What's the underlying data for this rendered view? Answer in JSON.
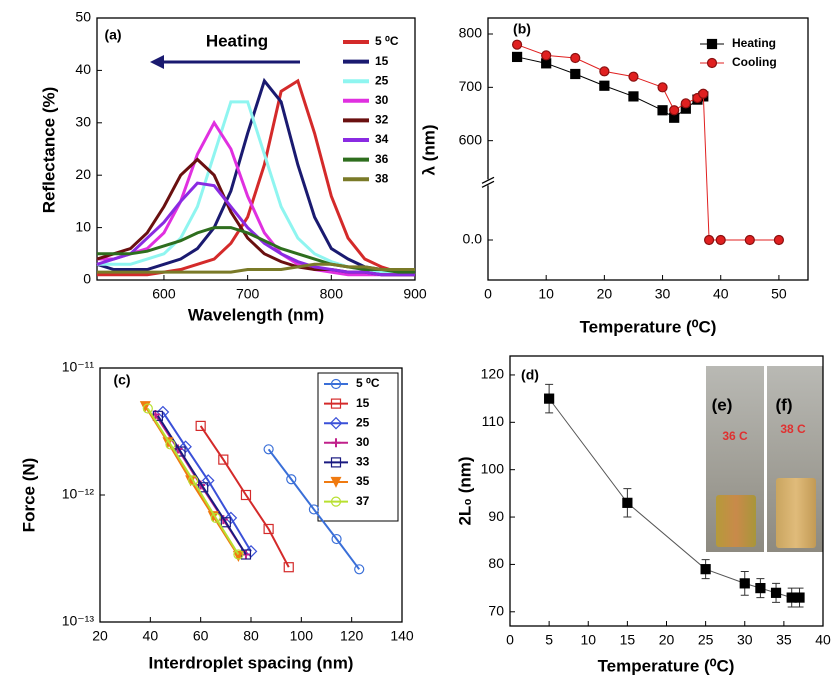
{
  "chart_data": [
    {
      "type": "line",
      "xlabel": "Wavelength (nm)",
      "ylabel": "Reflectance (%)",
      "annotations": [
        "(a)",
        "Heating"
      ],
      "x": [
        520,
        540,
        560,
        580,
        600,
        620,
        640,
        660,
        680,
        700,
        720,
        740,
        760,
        780,
        800,
        820,
        840,
        860,
        880,
        900
      ],
      "xlim": [
        520,
        900
      ],
      "xticks": [
        600,
        700,
        800,
        900
      ],
      "ylim": [
        0,
        50
      ],
      "yticks": [
        0,
        10,
        20,
        30,
        40,
        50
      ],
      "legend": "upper right",
      "series": [
        {
          "name": "5 ⁰C",
          "color": "#d42a2a",
          "values": [
            1,
            1,
            1,
            1,
            1.5,
            2,
            3,
            4,
            7,
            12,
            22,
            36,
            38,
            28,
            16,
            8,
            4,
            2.5,
            1.5,
            1
          ]
        },
        {
          "name": "15",
          "color": "#1a1a70",
          "values": [
            3,
            2,
            2,
            2,
            3,
            4,
            6,
            10,
            17,
            28,
            38,
            34,
            22,
            12,
            6,
            4,
            2.5,
            2,
            1.5,
            1
          ]
        },
        {
          "name": "25",
          "color": "#8ff5f0",
          "values": [
            3,
            3,
            3,
            4,
            5,
            8,
            14,
            24,
            34,
            34,
            24,
            14,
            8,
            5,
            3.5,
            2.5,
            2,
            1.5,
            1,
            1
          ]
        },
        {
          "name": "30",
          "color": "#e030e0",
          "values": [
            4,
            4,
            5,
            6,
            9,
            15,
            24,
            30,
            25,
            16,
            9,
            5,
            3,
            2,
            1.5,
            1,
            1,
            1,
            1,
            1
          ]
        },
        {
          "name": "32",
          "color": "#6a1010",
          "values": [
            4,
            5,
            6,
            9,
            14,
            20,
            23,
            20,
            13,
            8,
            5,
            3.5,
            2.5,
            2,
            2,
            1.5,
            1.5,
            1,
            1,
            1
          ]
        },
        {
          "name": "34",
          "color": "#8a2be2",
          "values": [
            3,
            4,
            5,
            8,
            11,
            15,
            18.5,
            18,
            14,
            10,
            7,
            5,
            3.5,
            2.5,
            2,
            1.5,
            1.5,
            1,
            1,
            1
          ]
        },
        {
          "name": "36",
          "color": "#2e6e1e",
          "values": [
            5,
            5,
            5,
            5.5,
            6.5,
            7.5,
            9,
            10,
            10,
            9,
            7.5,
            6,
            5,
            4,
            3,
            2.5,
            2,
            2,
            1.5,
            1.5
          ]
        },
        {
          "name": "38",
          "color": "#7a7a28",
          "values": [
            1.5,
            1.5,
            1.5,
            1.5,
            1.5,
            1.5,
            1.5,
            1.5,
            1.5,
            2,
            2,
            2,
            2.5,
            3,
            3,
            2.5,
            2.5,
            2,
            2,
            2
          ]
        }
      ]
    },
    {
      "type": "line",
      "xlabel": "Temperature (⁰C)",
      "ylabel": "λ (nm)",
      "annotations": [
        "(b)"
      ],
      "xlim": [
        0,
        55
      ],
      "xticks": [
        0,
        10,
        20,
        30,
        40,
        50
      ],
      "ylim": [
        -75,
        830
      ],
      "ybreak": [
        50,
        580
      ],
      "yticks": [
        {
          "value": 0,
          "label": "0.0"
        },
        600,
        700,
        800
      ],
      "legend": "upper right",
      "series": [
        {
          "name": "Heating",
          "color": "#000000",
          "marker": "square",
          "x": [
            5,
            10,
            15,
            20,
            25,
            30,
            32,
            34,
            36,
            37
          ],
          "values": [
            757,
            745,
            725,
            703,
            683,
            657,
            643,
            660,
            677,
            683
          ]
        },
        {
          "name": "Cooling",
          "color": "#e02020",
          "marker": "circle",
          "x": [
            5,
            10,
            15,
            20,
            25,
            30,
            32,
            34,
            36,
            37,
            38,
            40,
            45,
            50
          ],
          "values": [
            780,
            760,
            755,
            730,
            720,
            700,
            657,
            670,
            680,
            688,
            0,
            0,
            0,
            0
          ]
        }
      ]
    },
    {
      "type": "line",
      "xlabel": "Interdroplet spacing (nm)",
      "ylabel": "Force (N)",
      "annotations": [
        "(c)"
      ],
      "log_y": true,
      "xlim": [
        20,
        140
      ],
      "xticks": [
        20,
        40,
        60,
        80,
        100,
        120,
        140
      ],
      "ylim": [
        1e-13,
        1e-11
      ],
      "yticks": [
        {
          "value": 1e-13,
          "label": "10⁻¹³"
        },
        {
          "value": 1e-12,
          "label": "10⁻¹²"
        },
        {
          "value": 1e-11,
          "label": "10⁻¹¹"
        }
      ],
      "legend": "upper right",
      "series": [
        {
          "name": "5 ⁰C",
          "color": "#3a6fd8",
          "marker": "circle",
          "x": [
            87,
            96,
            105,
            114,
            123
          ],
          "values": [
            2.29e-12,
            1.33e-12,
            7.7e-13,
            4.5e-13,
            2.6e-13
          ]
        },
        {
          "name": "15",
          "color": "#d42a2a",
          "marker": "square",
          "x": [
            60,
            69,
            78,
            87,
            95
          ],
          "values": [
            3.5e-12,
            1.9e-12,
            1e-12,
            5.4e-13,
            2.7e-13
          ]
        },
        {
          "name": "25",
          "color": "#3a50d8",
          "marker": "diamond",
          "x": [
            45,
            54,
            63,
            72,
            80
          ],
          "values": [
            4.5e-12,
            2.4e-12,
            1.3e-12,
            6.6e-13,
            3.6e-13
          ]
        },
        {
          "name": "30",
          "color": "#c0208a",
          "marker": "plus",
          "x": [
            42,
            51,
            60,
            69,
            78
          ],
          "values": [
            4.3e-12,
            2.3e-12,
            1.2e-12,
            6.4e-13,
            3.4e-13
          ]
        },
        {
          "name": "33",
          "color": "#1a1a80",
          "marker": "square",
          "x": [
            43,
            52,
            61,
            70,
            78
          ],
          "values": [
            4.2e-12,
            2.2e-12,
            1.15e-12,
            6.1e-13,
            3.4e-13
          ]
        },
        {
          "name": "35",
          "color": "#f07a10",
          "marker": "triangle",
          "x": [
            38,
            47,
            56,
            65,
            75
          ],
          "values": [
            5e-12,
            2.6e-12,
            1.3e-12,
            6.8e-13,
            3.3e-13
          ]
        },
        {
          "name": "37",
          "color": "#b8e030",
          "marker": "circle",
          "x": [
            39,
            48,
            57,
            66,
            75
          ],
          "values": [
            4.8e-12,
            2.5e-12,
            1.3e-12,
            6.6e-13,
            3.4e-13
          ]
        }
      ]
    },
    {
      "type": "line",
      "xlabel": "Temperature (⁰C)",
      "ylabel": "2L₀ (nm)",
      "annotations": [
        "(d)",
        "(e)",
        "(f)",
        "36 C",
        "38 C"
      ],
      "xlim": [
        0,
        40
      ],
      "xticks": [
        0,
        5,
        10,
        15,
        20,
        25,
        30,
        35,
        40
      ],
      "ylim": [
        67,
        124
      ],
      "yticks": [
        70,
        80,
        90,
        100,
        110,
        120
      ],
      "series": [
        {
          "color": "#000000",
          "marker": "square",
          "x": [
            5,
            15,
            25,
            30,
            32,
            34,
            36,
            37
          ],
          "values": [
            115,
            93,
            79,
            76,
            75,
            74,
            73,
            73
          ],
          "errors": [
            3,
            3,
            2,
            2.5,
            2,
            2,
            2,
            2
          ]
        }
      ]
    }
  ]
}
